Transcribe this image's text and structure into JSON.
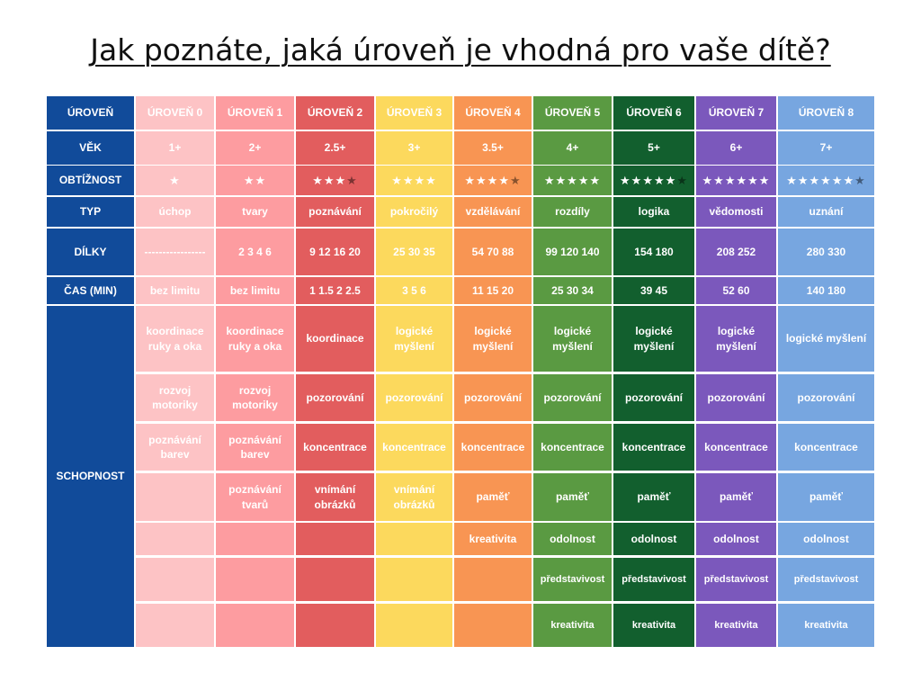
{
  "title": "Jak poznáte, jaká úroveň je vhodná pro vaše dítě?",
  "row_headers": [
    "ÚROVEŇ",
    "VĚK",
    "OBTÍŽNOST",
    "TYP",
    "DÍLKY",
    "ČAS (MIN)",
    "SCHOPNOST"
  ],
  "colors": {
    "header_column": "#114b9a",
    "levels": [
      "#fdc3c5",
      "#fd9ca0",
      "#e25d5e",
      "#fcd95d",
      "#f89553",
      "#5a9a42",
      "#125f2e",
      "#7b58bc",
      "#77a6e0"
    ]
  },
  "levels": [
    {
      "name": "ÚROVEŇ 0",
      "age": "1+",
      "difficulty": 1,
      "stars_full": 1,
      "stars_half": false,
      "type": "úchop",
      "pieces": "-----------------",
      "time": "bez limitu",
      "skills": [
        "koordinace ruky a oka",
        "rozvoj motoriky",
        "poznávání barev",
        "",
        "",
        "",
        ""
      ]
    },
    {
      "name": "ÚROVEŇ 1",
      "age": "2+",
      "difficulty": 2,
      "stars_full": 2,
      "stars_half": false,
      "type": "tvary",
      "pieces": "2 3 4  6",
      "time": "bez limitu",
      "skills": [
        "koordinace ruky a oka",
        "rozvoj motoriky",
        "poznávání barev",
        "poznávání tvarů",
        "",
        "",
        ""
      ]
    },
    {
      "name": "ÚROVEŇ 2",
      "age": "2.5+",
      "difficulty": 3.5,
      "stars_full": 3,
      "stars_half": true,
      "type": "poznávání",
      "pieces": "9 12 16 20",
      "time": "1 1.5 2 2.5",
      "skills": [
        "koordinace",
        "pozorování",
        "koncentrace",
        "vnímání obrázků",
        "",
        "",
        ""
      ]
    },
    {
      "name": "ÚROVEŇ 3",
      "age": "3+",
      "difficulty": 4,
      "stars_full": 4,
      "stars_half": false,
      "type": "pokročilý",
      "pieces": "25 30 35",
      "time": "3 5 6",
      "skills": [
        "logické myšlení",
        "pozorování",
        "koncentrace",
        "vnímání obrázků",
        "",
        "",
        ""
      ]
    },
    {
      "name": "ÚROVEŇ 4",
      "age": "3.5+",
      "difficulty": 4.5,
      "stars_full": 4,
      "stars_half": true,
      "type": "vzdělávání",
      "pieces": "54 70 88",
      "time": "11 15 20",
      "skills": [
        "logické myšlení",
        "pozorování",
        "koncentrace",
        "paměť",
        "kreativita",
        "",
        ""
      ]
    },
    {
      "name": "ÚROVEŇ 5",
      "age": "4+",
      "difficulty": 5,
      "stars_full": 5,
      "stars_half": false,
      "type": "rozdíly",
      "pieces": "99 120 140",
      "time": "25 30 34",
      "skills": [
        "logické myšlení",
        "pozorování",
        "koncentrace",
        "paměť",
        "odolnost",
        "představivost",
        "kreativita"
      ]
    },
    {
      "name": "ÚROVEŇ 6",
      "age": "5+",
      "difficulty": 5.5,
      "stars_full": 5,
      "stars_half": true,
      "type": "logika",
      "pieces": "154  180",
      "time": "39 45",
      "skills": [
        "logické myšlení",
        "pozorování",
        "koncentrace",
        "paměť",
        "odolnost",
        "představivost",
        "kreativita"
      ]
    },
    {
      "name": "ÚROVEŇ 7",
      "age": "6+",
      "difficulty": 6,
      "stars_full": 6,
      "stars_half": false,
      "type": "vědomosti",
      "pieces": "208  252",
      "time": "52 60",
      "skills": [
        "logické myšlení",
        "pozorování",
        "koncentrace",
        "paměť",
        "odolnost",
        "představivost",
        "kreativita"
      ]
    },
    {
      "name": "ÚROVEŇ 8",
      "age": "7+",
      "difficulty": 6.5,
      "stars_full": 6,
      "stars_half": true,
      "type": "uznání",
      "pieces": "280 330",
      "time": "140 180",
      "skills": [
        "logické myšlení",
        "pozorování",
        "koncentrace",
        "paměť",
        "odolnost",
        "představivost",
        "kreativita"
      ]
    }
  ]
}
